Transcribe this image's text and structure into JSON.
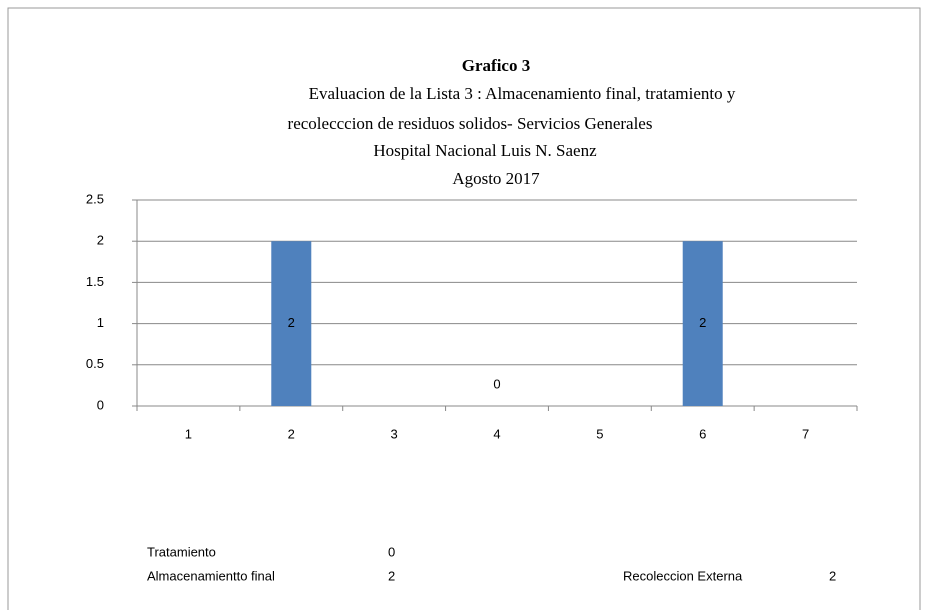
{
  "chart_data": {
    "type": "bar",
    "title": "Grafico 3",
    "subtitle": [
      "Evaluacion de la Lista 3 : Almacenamiento final, tratamiento  y",
      "recolecccion de residuos solidos- Servicios Generales",
      "Hospital Nacional Luis N. Saenz",
      "Agosto 2017"
    ],
    "categories": [
      "1",
      "2",
      "3",
      "4",
      "5",
      "6",
      "7"
    ],
    "values": [
      null,
      2,
      null,
      0,
      null,
      2,
      null
    ],
    "value_labels": [
      null,
      "2",
      null,
      "0",
      null,
      "2",
      null
    ],
    "color": "#4f81bd",
    "ylim": [
      0,
      2.5
    ],
    "yticks": [
      0,
      0.5,
      1,
      1.5,
      2,
      2.5
    ],
    "grid": true,
    "notes": [
      {
        "label": "Tratamiento",
        "value": 0
      },
      {
        "label": "Almacenamientto final",
        "value": 2
      },
      {
        "label": "Recoleccion  Externa",
        "value": 2
      }
    ]
  }
}
